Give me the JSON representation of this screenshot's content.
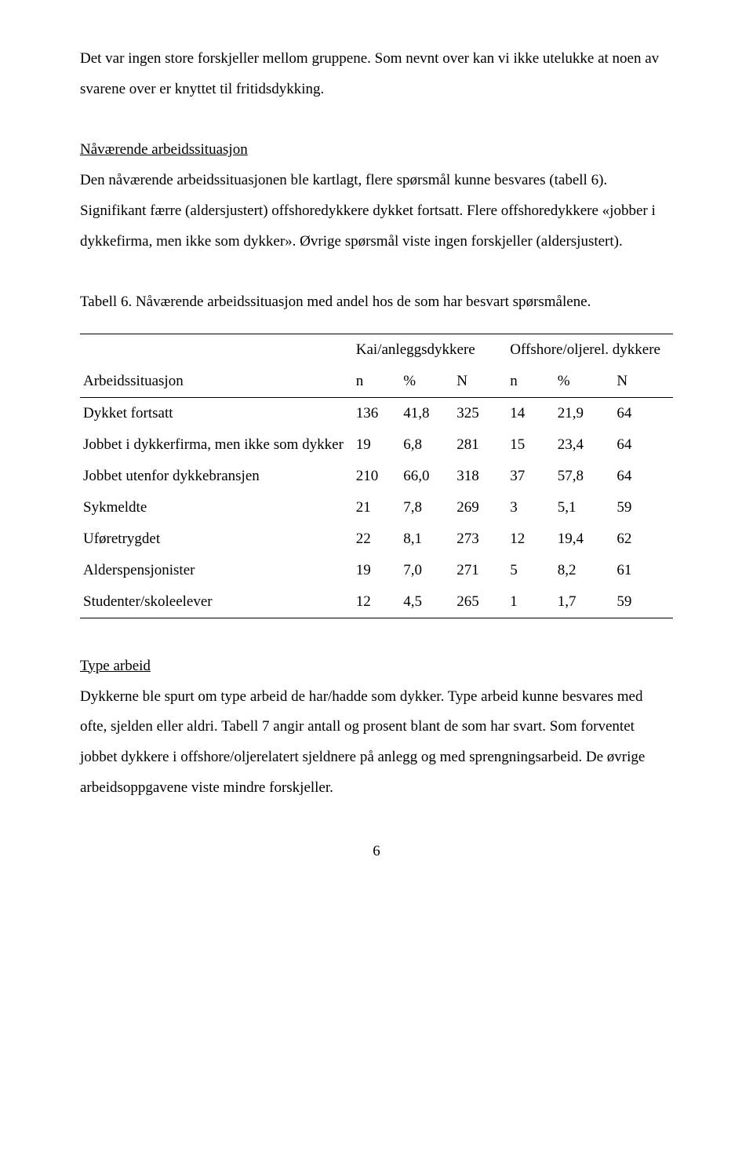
{
  "para1": "Det var ingen store forskjeller mellom gruppene. Som nevnt over kan vi ikke utelukke at noen av svarene over er knyttet til fritidsdykking.",
  "section1_heading": "Nåværende arbeidssituasjon",
  "section1_body": "Den nåværende arbeidssituasjonen ble kartlagt, flere spørsmål kunne besvares (tabell 6). Signifikant færre (aldersjustert) offshoredykkere dykket fortsatt. Flere offshoredykkere «jobber i dykkefirma, men ikke som dykker». Øvrige spørsmål viste ingen forskjeller (aldersjustert).",
  "table_caption": "Tabell 6. Nåværende arbeidssituasjon med andel hos de som har besvart spørsmålene.",
  "table": {
    "group_headers": [
      "Kai/anleggsdykkere",
      "Offshore/oljerel. dykkere"
    ],
    "row_label_header": "Arbeidssituasjon",
    "col_headers": [
      "n",
      "%",
      "N",
      "n",
      "%",
      "N"
    ],
    "rows": [
      {
        "label": "Dykket fortsatt",
        "cells": [
          "136",
          "41,8",
          "325",
          "14",
          "21,9",
          "64"
        ]
      },
      {
        "label": "Jobbet i dykkerfirma, men ikke som dykker",
        "cells": [
          "19",
          "6,8",
          "281",
          "15",
          "23,4",
          "64"
        ]
      },
      {
        "label": "Jobbet utenfor dykkebransjen",
        "cells": [
          "210",
          "66,0",
          "318",
          "37",
          "57,8",
          "64"
        ]
      },
      {
        "label": "Sykmeldte",
        "cells": [
          "21",
          "7,8",
          "269",
          "3",
          "5,1",
          "59"
        ]
      },
      {
        "label": "Uføretrygdet",
        "cells": [
          "22",
          "8,1",
          "273",
          "12",
          "19,4",
          "62"
        ]
      },
      {
        "label": "Alderspensjonister",
        "cells": [
          "19",
          "7,0",
          "271",
          "5",
          "8,2",
          "61"
        ]
      },
      {
        "label": "Studenter/skoleelever",
        "cells": [
          "12",
          "4,5",
          "265",
          "1",
          "1,7",
          "59"
        ]
      }
    ]
  },
  "section2_heading": "Type arbeid",
  "section2_body": "Dykkerne ble spurt om type arbeid de har/hadde som dykker. Type arbeid kunne besvares med ofte, sjelden eller aldri. Tabell 7 angir antall og prosent blant de som har svart. Som forventet jobbet dykkere i offshore/oljerelatert sjeldnere på anlegg og med sprengningsarbeid. De øvrige arbeidsoppgavene viste mindre forskjeller.",
  "page_number": "6"
}
